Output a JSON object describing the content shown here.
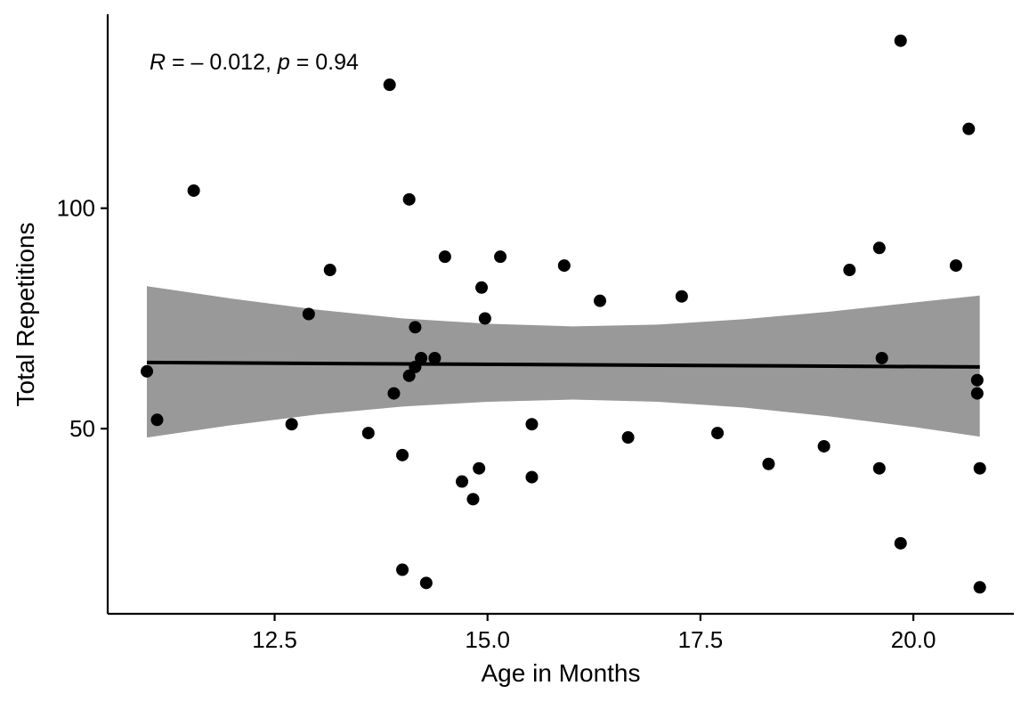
{
  "chart_data": {
    "type": "scatter",
    "xlabel": "Age in Months",
    "ylabel": "Total Repetitions",
    "xlim": [
      10.54,
      21.18
    ],
    "ylim": [
      8,
      144
    ],
    "xticks": [
      12.5,
      15.0,
      17.5,
      20.0
    ],
    "xtick_labels": [
      "12.5",
      "15.0",
      "17.5",
      "20.0"
    ],
    "yticks": [
      50,
      100
    ],
    "ytick_labels": [
      "50",
      "100"
    ],
    "grid": false,
    "legend": "none",
    "annotation": {
      "r_symbol": "R",
      "r_text": " = – 0.012, ",
      "p_symbol": "p",
      "p_text": " = 0.94"
    },
    "colors": {
      "points": "#000000",
      "trend_line": "#000000",
      "confidence_band": "#999999"
    },
    "points": [
      {
        "x": 11.0,
        "y": 63
      },
      {
        "x": 11.12,
        "y": 52
      },
      {
        "x": 11.55,
        "y": 104
      },
      {
        "x": 12.7,
        "y": 51
      },
      {
        "x": 12.9,
        "y": 76
      },
      {
        "x": 13.15,
        "y": 86
      },
      {
        "x": 13.6,
        "y": 49
      },
      {
        "x": 13.85,
        "y": 128
      },
      {
        "x": 13.9,
        "y": 58
      },
      {
        "x": 14.0,
        "y": 44
      },
      {
        "x": 14.0,
        "y": 18
      },
      {
        "x": 14.08,
        "y": 102
      },
      {
        "x": 14.08,
        "y": 62
      },
      {
        "x": 14.15,
        "y": 64
      },
      {
        "x": 14.15,
        "y": 73
      },
      {
        "x": 14.22,
        "y": 66
      },
      {
        "x": 14.28,
        "y": 15
      },
      {
        "x": 14.38,
        "y": 66
      },
      {
        "x": 14.5,
        "y": 89
      },
      {
        "x": 14.7,
        "y": 38
      },
      {
        "x": 14.83,
        "y": 34
      },
      {
        "x": 14.9,
        "y": 41
      },
      {
        "x": 14.93,
        "y": 82
      },
      {
        "x": 14.97,
        "y": 75
      },
      {
        "x": 15.15,
        "y": 89
      },
      {
        "x": 15.52,
        "y": 51
      },
      {
        "x": 15.52,
        "y": 39
      },
      {
        "x": 15.9,
        "y": 87
      },
      {
        "x": 16.32,
        "y": 79
      },
      {
        "x": 16.65,
        "y": 48
      },
      {
        "x": 17.28,
        "y": 80
      },
      {
        "x": 17.7,
        "y": 49
      },
      {
        "x": 18.3,
        "y": 42
      },
      {
        "x": 18.95,
        "y": 46
      },
      {
        "x": 19.25,
        "y": 86
      },
      {
        "x": 19.6,
        "y": 91
      },
      {
        "x": 19.6,
        "y": 41
      },
      {
        "x": 19.63,
        "y": 66
      },
      {
        "x": 19.85,
        "y": 138
      },
      {
        "x": 19.85,
        "y": 24
      },
      {
        "x": 20.5,
        "y": 87
      },
      {
        "x": 20.65,
        "y": 118
      },
      {
        "x": 20.75,
        "y": 61
      },
      {
        "x": 20.75,
        "y": 58
      },
      {
        "x": 20.78,
        "y": 41
      },
      {
        "x": 20.78,
        "y": 14
      }
    ],
    "trend_line": {
      "x": [
        11.0,
        20.78
      ],
      "y": [
        65.0,
        64.0
      ]
    },
    "confidence_band": {
      "x": [
        11.0,
        12.0,
        13.0,
        14.0,
        15.0,
        16.0,
        17.0,
        18.0,
        19.0,
        20.0,
        20.78
      ],
      "upper": [
        82.3,
        79.5,
        77.0,
        75.0,
        73.8,
        73.2,
        73.6,
        74.8,
        76.5,
        78.6,
        80.2
      ],
      "lower": [
        48.0,
        50.8,
        53.2,
        55.0,
        56.1,
        56.6,
        56.1,
        54.8,
        52.8,
        50.4,
        48.2
      ]
    }
  }
}
